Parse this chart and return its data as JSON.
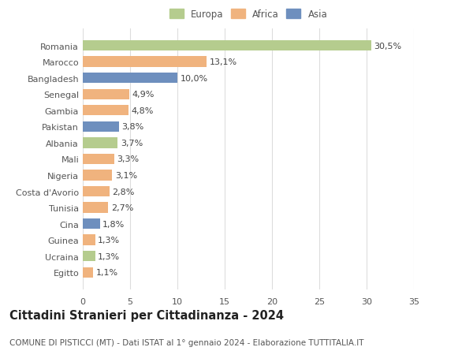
{
  "countries": [
    "Romania",
    "Marocco",
    "Bangladesh",
    "Senegal",
    "Gambia",
    "Pakistan",
    "Albania",
    "Mali",
    "Nigeria",
    "Costa d'Avorio",
    "Tunisia",
    "Cina",
    "Guinea",
    "Ucraina",
    "Egitto"
  ],
  "values": [
    30.5,
    13.1,
    10.0,
    4.9,
    4.8,
    3.8,
    3.7,
    3.3,
    3.1,
    2.8,
    2.7,
    1.8,
    1.3,
    1.3,
    1.1
  ],
  "labels": [
    "30,5%",
    "13,1%",
    "10,0%",
    "4,9%",
    "4,8%",
    "3,8%",
    "3,7%",
    "3,3%",
    "3,1%",
    "2,8%",
    "2,7%",
    "1,8%",
    "1,3%",
    "1,3%",
    "1,1%"
  ],
  "continents": [
    "Europa",
    "Africa",
    "Asia",
    "Africa",
    "Africa",
    "Asia",
    "Europa",
    "Africa",
    "Africa",
    "Africa",
    "Africa",
    "Asia",
    "Africa",
    "Europa",
    "Africa"
  ],
  "colors": {
    "Europa": "#b5cc8e",
    "Africa": "#f0b37e",
    "Asia": "#6e8fbe"
  },
  "title": "Cittadini Stranieri per Cittadinanza - 2024",
  "subtitle": "COMUNE DI PISTICCI (MT) - Dati ISTAT al 1° gennaio 2024 - Elaborazione TUTTITALIA.IT",
  "xlim": [
    0,
    35
  ],
  "xticks": [
    0,
    5,
    10,
    15,
    20,
    25,
    30,
    35
  ],
  "background_color": "#ffffff",
  "grid_color": "#dddddd",
  "bar_height": 0.65,
  "label_fontsize": 8,
  "title_fontsize": 10.5,
  "subtitle_fontsize": 7.5,
  "ytick_fontsize": 8,
  "xtick_fontsize": 8,
  "legend_fontsize": 8.5
}
